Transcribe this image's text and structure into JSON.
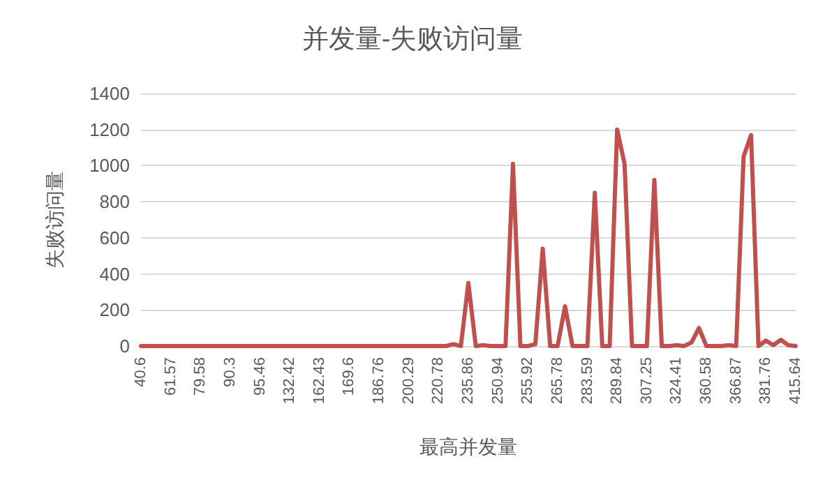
{
  "chart_data": {
    "type": "line",
    "title": "并发量-失败访问量",
    "xlabel": "最高并发量",
    "ylabel": "失败访问量",
    "categories": [
      "40.6",
      null,
      null,
      null,
      "61.57",
      null,
      null,
      null,
      "79.58",
      null,
      null,
      null,
      "90.3",
      null,
      null,
      null,
      "95.46",
      null,
      null,
      null,
      "132.42",
      null,
      null,
      null,
      "162.43",
      null,
      null,
      null,
      "169.6",
      null,
      null,
      null,
      "186.76",
      null,
      null,
      null,
      "200.29",
      null,
      null,
      null,
      "220.78",
      null,
      null,
      null,
      "235.86",
      null,
      null,
      null,
      "250.94",
      null,
      null,
      null,
      "255.92",
      null,
      null,
      null,
      "265.78",
      null,
      null,
      null,
      "283.59",
      null,
      null,
      null,
      "289.84",
      null,
      null,
      null,
      "307.25",
      null,
      null,
      null,
      "324.41",
      null,
      null,
      null,
      "360.58",
      null,
      null,
      null,
      "366.87",
      null,
      null,
      null,
      "381.76",
      null,
      null,
      null,
      "415.64"
    ],
    "series": [
      {
        "color": "#c0504d",
        "values": [
          0,
          0,
          0,
          0,
          0,
          0,
          0,
          0,
          0,
          0,
          0,
          0,
          0,
          0,
          0,
          0,
          0,
          0,
          0,
          0,
          0,
          0,
          0,
          0,
          0,
          0,
          0,
          0,
          0,
          0,
          0,
          0,
          0,
          0,
          0,
          0,
          0,
          0,
          0,
          0,
          0,
          0,
          10,
          0,
          350,
          0,
          5,
          0,
          0,
          0,
          1010,
          0,
          0,
          10,
          540,
          0,
          0,
          220,
          0,
          0,
          0,
          850,
          0,
          0,
          1200,
          1010,
          0,
          0,
          0,
          920,
          0,
          0,
          5,
          0,
          20,
          100,
          0,
          0,
          0,
          5,
          0,
          1050,
          1170,
          0,
          30,
          5,
          35,
          5,
          0
        ]
      }
    ],
    "ylim": [
      0,
      1400
    ],
    "yticks": [
      0,
      200,
      400,
      600,
      800,
      1000,
      1200,
      1400
    ],
    "grid": "y",
    "marker": "none",
    "line_style": "solid"
  }
}
